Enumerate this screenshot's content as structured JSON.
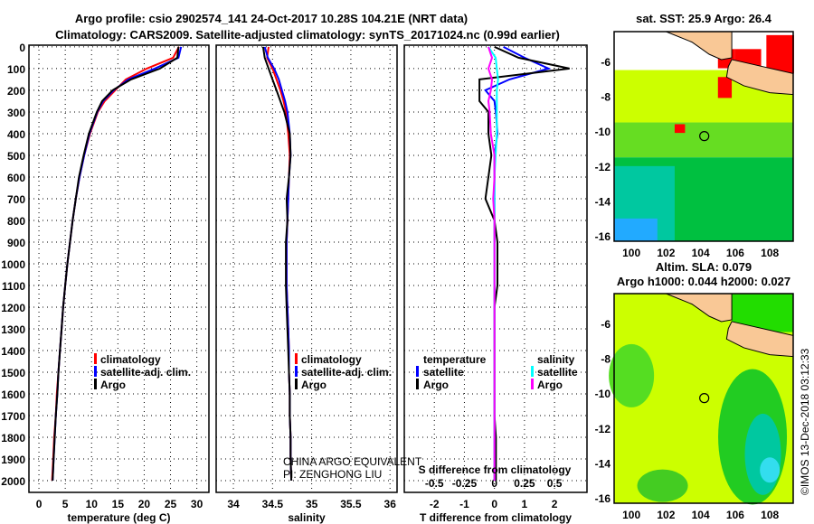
{
  "title_line1": "Argo profile: csio 2902574_141 24-Oct-2017 10.28S 104.21E (NRT data)",
  "title_line2": "Climatology: CARS2009. Satellite-adjusted climatology: synTS_20171024.nc (0.99d earlier)",
  "colors": {
    "climatology": "#ff0000",
    "satellite": "#0000ff",
    "argo": "#000000",
    "sal_satellite": "#00ffff",
    "sal_argo": "#ff00ff",
    "land": "#f9c896"
  },
  "chart_data": [
    {
      "type": "line",
      "name": "temperature",
      "xlabel": "temperature (deg C)",
      "xlim": [
        -1.9,
        32.3
      ],
      "ylim": [
        2054,
        -8
      ],
      "xticks": [
        "0",
        "5",
        "10",
        "15",
        "20",
        "25",
        "30"
      ],
      "xtick_values": [
        0,
        5,
        10,
        15,
        20,
        25,
        30
      ],
      "yticks": [
        "0",
        "100",
        "200",
        "300",
        "400",
        "500",
        "600",
        "700",
        "800",
        "900",
        "1000",
        "1100",
        "1200",
        "1300",
        "1400",
        "1500",
        "1600",
        "1700",
        "1800",
        "1900",
        "2000"
      ],
      "depth": [
        0,
        50,
        100,
        150,
        200,
        250,
        300,
        400,
        500,
        600,
        700,
        800,
        900,
        1000,
        1100,
        1200,
        1300,
        1400,
        1500,
        1600,
        1700,
        1800,
        1900,
        2000
      ],
      "series": [
        {
          "name": "climatology",
          "values": [
            26.6,
            25.5,
            20.5,
            16.5,
            14.5,
            12.5,
            11.2,
            9.7,
            8.6,
            7.7,
            7.0,
            6.4,
            5.9,
            5.4,
            5.0,
            4.6,
            4.3,
            4.0,
            3.7,
            3.4,
            3.2,
            2.9,
            2.7,
            2.5
          ]
        },
        {
          "name": "satellite-adj. clim.",
          "values": [
            27.0,
            26.5,
            22.0,
            17.0,
            14.2,
            12.2,
            11.1,
            9.6,
            8.6,
            7.7,
            7.0,
            6.4,
            5.9,
            5.4,
            5.0,
            4.6,
            4.3,
            4.0,
            3.7,
            3.5,
            3.2,
            3.0,
            2.8,
            2.6
          ]
        },
        {
          "name": "Argo",
          "values": [
            26.5,
            26.3,
            23.0,
            17.5,
            14.0,
            12.0,
            11.0,
            9.5,
            8.5,
            7.6,
            7.0,
            6.4,
            5.9,
            5.4,
            5.0,
            4.6,
            4.3,
            4.0,
            3.7,
            3.5,
            3.2,
            3.0,
            2.8,
            2.6
          ]
        }
      ],
      "legend": [
        "climatology",
        "satellite-adj. clim.",
        "Argo"
      ],
      "legend_position": "lower-center"
    },
    {
      "type": "line",
      "name": "salinity",
      "xlabel": "salinity",
      "xlim": [
        33.78,
        36.09
      ],
      "ylim": [
        2054,
        -8
      ],
      "xticks": [
        "34",
        "34.5",
        "35",
        "35.5",
        "36"
      ],
      "xtick_values": [
        34,
        34.5,
        35,
        35.5,
        36
      ],
      "depth": [
        0,
        50,
        100,
        150,
        200,
        250,
        300,
        400,
        500,
        600,
        700,
        800,
        900,
        1000,
        1100,
        1200,
        1300,
        1400,
        1500,
        1600,
        1700,
        1800,
        1900,
        2000
      ],
      "series": [
        {
          "name": "climatology",
          "values": [
            34.45,
            34.43,
            34.5,
            34.55,
            34.6,
            34.64,
            34.67,
            34.7,
            34.72,
            34.71,
            34.7,
            34.69,
            34.68,
            34.68,
            34.68,
            34.69,
            34.7,
            34.71,
            34.71,
            34.72,
            34.72,
            34.73,
            34.73,
            34.74
          ]
        },
        {
          "name": "satellite-adj. clim.",
          "values": [
            34.4,
            34.44,
            34.52,
            34.58,
            34.62,
            34.66,
            34.69,
            34.72,
            34.73,
            34.71,
            34.7,
            34.69,
            34.68,
            34.68,
            34.68,
            34.69,
            34.7,
            34.71,
            34.71,
            34.72,
            34.72,
            34.73,
            34.73,
            34.74
          ]
        },
        {
          "name": "Argo",
          "values": [
            34.38,
            34.4,
            34.45,
            34.5,
            34.55,
            34.6,
            34.65,
            34.72,
            34.73,
            34.71,
            34.68,
            34.69,
            34.67,
            34.67,
            34.67,
            34.68,
            34.69,
            34.7,
            34.71,
            34.72,
            34.72,
            34.73,
            34.73,
            34.74
          ]
        }
      ],
      "legend": [
        "climatology",
        "satellite-adj. clim.",
        "Argo"
      ],
      "annotation": [
        "CHINA ARGO EQUIVALENT",
        "PI: ZENGHONG LIU"
      ]
    },
    {
      "type": "line",
      "name": "difference",
      "xlabel": "T difference from climatology",
      "xlabel2": "S difference from climatology",
      "xlim": [
        -3.0,
        3.08
      ],
      "ylim": [
        2054,
        -8
      ],
      "xticks": [
        "-2",
        "-1",
        "0",
        "1",
        "2"
      ],
      "xtick_values": [
        -2,
        -1,
        0,
        1,
        2
      ],
      "xticks2": [
        "-0.5",
        "-0.25",
        "0",
        "0.25",
        "0.5"
      ],
      "xtick2_values": [
        -0.5,
        -0.25,
        0,
        0.25,
        0.5
      ],
      "depth": [
        0,
        50,
        100,
        150,
        200,
        250,
        300,
        400,
        500,
        600,
        700,
        800,
        900,
        1000,
        1100,
        1200,
        1300,
        1400,
        1500,
        1600,
        1700,
        1800,
        1900,
        2000
      ],
      "series": [
        {
          "name": "T satellite",
          "axis": "T",
          "values": [
            0.3,
            1.0,
            1.8,
            0.5,
            -0.3,
            0,
            0.05,
            0.1,
            0,
            0,
            0,
            0,
            0,
            0,
            0,
            0,
            0,
            0,
            0,
            0,
            0,
            0,
            0,
            0
          ]
        },
        {
          "name": "T Argo",
          "axis": "T",
          "values": [
            0,
            0.8,
            2.5,
            -0.5,
            -0.5,
            -0.5,
            -0.2,
            -0.2,
            -0.1,
            -0.2,
            -0.3,
            0,
            0.1,
            0.1,
            0.1,
            0,
            0,
            0,
            0,
            0,
            0,
            0.05,
            0.05,
            0.05
          ]
        },
        {
          "name": "S satellite",
          "axis": "S",
          "values": [
            -0.05,
            0.01,
            0.02,
            0.03,
            0.02,
            0.02,
            0.02,
            0.02,
            0.01,
            0,
            0,
            0,
            0,
            0,
            0,
            0,
            0,
            0,
            0,
            0,
            0,
            0,
            0,
            0
          ]
        },
        {
          "name": "S Argo",
          "axis": "S",
          "values": [
            -0.05,
            -0.02,
            -0.05,
            -0.02,
            -0.03,
            -0.05,
            -0.04,
            -0.03,
            0,
            0,
            -0.01,
            0,
            0,
            0,
            0,
            0,
            0,
            0,
            0,
            0,
            0,
            0,
            0,
            0
          ]
        }
      ],
      "legend_temperature": {
        "title": "temperature",
        "items": [
          "satellite",
          "Argo"
        ]
      },
      "legend_salinity": {
        "title": "salinity",
        "items": [
          "satellite",
          "Argo"
        ]
      }
    }
  ],
  "maps": {
    "sst_title": "sat. SST: 25.9 Argo: 26.4",
    "sla_title1": "Altim. SLA: 0.079",
    "sla_title2": "Argo h1000: 0.044 h2000: 0.027",
    "lon_ticks": [
      "100",
      "102",
      "104",
      "106",
      "108"
    ],
    "lat_ticks": [
      "-6",
      "-8",
      "-10",
      "-12",
      "-14",
      "-16"
    ],
    "argo_lon": 104.21,
    "argo_lat": -10.28
  },
  "footer": "©IMOS 13-Dec-2018 03:12:33"
}
